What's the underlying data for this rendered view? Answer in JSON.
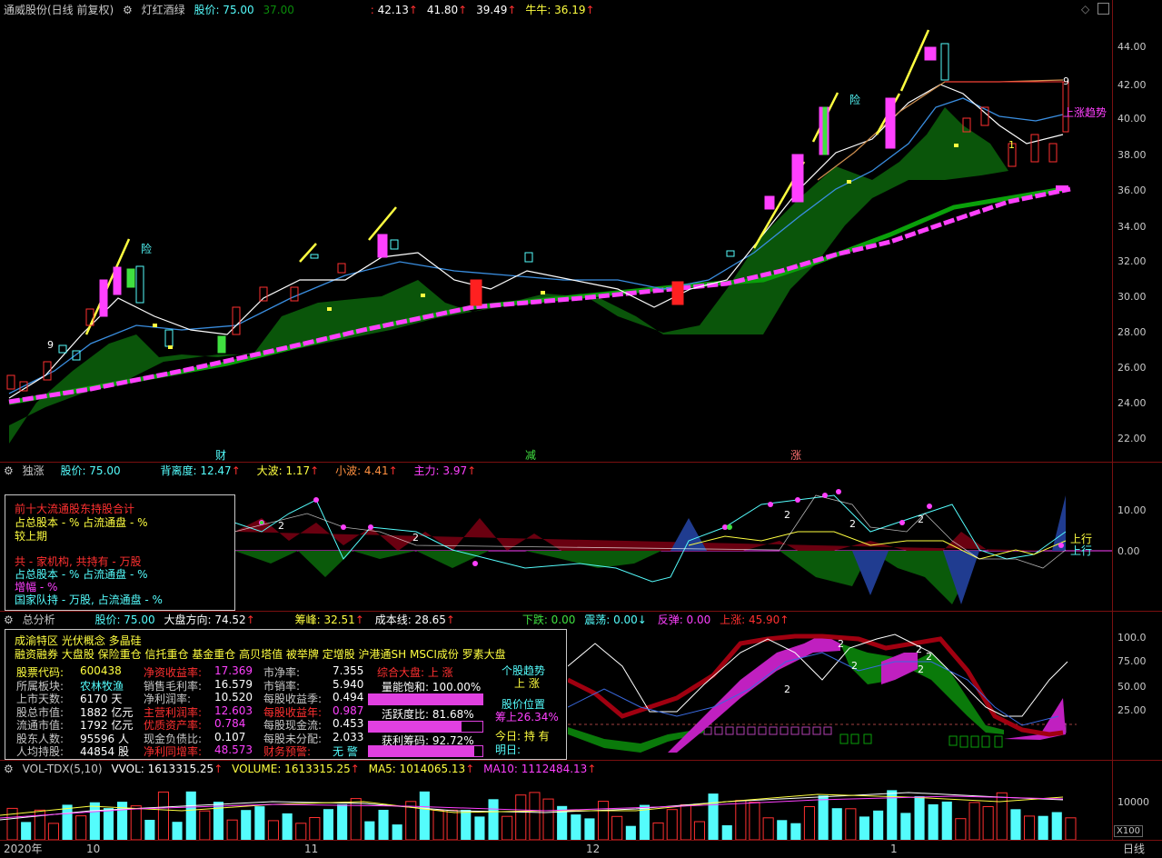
{
  "main": {
    "stock_title": "通威股份(日线 前复权)",
    "indicator": "灯红酒绿",
    "price": "股价: 75.00",
    "val_37": "37.00",
    "v1": "42.13",
    "v2": "41.80",
    "v3": "39.49",
    "bull": "牛牛: 36.19",
    "ticks": [
      "44.00",
      "42.00",
      "40.00",
      "38.00",
      "36.00",
      "34.00",
      "32.00",
      "30.00",
      "28.00",
      "26.00",
      "24.00",
      "22.00"
    ],
    "labels": {
      "risk1": "险",
      "risk2": "险",
      "uptrend": "上涨趋势",
      "cai": "财",
      "jian": "减",
      "zhang": "涨",
      "nine": "9",
      "one": "1"
    }
  },
  "panel2": {
    "name": "独涨",
    "price": "股价: 75.00",
    "beili": "背离度: 12.47",
    "dabo": "大波: 1.17",
    "xiaobo": "小波: 4.41",
    "zhuli": "主力: 3.97",
    "ticks": [
      "10.00",
      "0.00"
    ],
    "shang1": "上行",
    "shang2": "上行",
    "two": "2",
    "holder_box": {
      "title": "前十大流通股东持股合计",
      "l1": "占总股本 - %   占流通盘 - %",
      "l2": "较上期",
      "l3": "共 - 家机构, 共持有 - 万股",
      "l4": "占总股本 - %   占流通盘 - %",
      "l5": "增幅 - %",
      "l6": "国家队持 - 万股, 占流通盘 - %"
    }
  },
  "panel3": {
    "name": "总分析",
    "price": "股价: 75.00",
    "dapan": "大盘方向: 74.52",
    "chouma": "筹峰: 32.51",
    "chengben": "成本线: 28.65",
    "xiadie": "下跌: 0.00",
    "zhendang": "震荡: 0.00",
    "fantan": "反弹: 0.00",
    "shangzhang": "上涨: 45.90",
    "ticks": [
      "100.0",
      "75.00",
      "50.00",
      "25.00"
    ],
    "info": {
      "concept1": "成渝特区 光伏概念 多晶硅",
      "concept2": "融资融券 大盘股 保险重仓 信托重仓 基金重仓 高贝塔值 被举牌 定增股 沪港通SH MSCI成份 罗素大盘",
      "rows": [
        [
          "股票代码:",
          "600438",
          "净资收益率:",
          "17.369",
          "市净率:",
          "7.355"
        ],
        [
          "所属板块:",
          "农林牧渔",
          "销售毛利率:",
          "16.579",
          "市销率:",
          "5.940"
        ],
        [
          "上市天数:",
          "6170 天",
          "净利润率:",
          "10.520",
          "每股收益季:",
          "0.494"
        ],
        [
          "股总市值:",
          "1882 亿元",
          "主营利润率:",
          "12.603",
          "每股收益年:",
          "0.987"
        ],
        [
          "流通市值:",
          "1792 亿元",
          "优质资产率:",
          "0.784",
          "每股现金流:",
          "0.453"
        ],
        [
          "股东人数:",
          "95596 人",
          "现金负债比:",
          "0.107",
          "每股未分配:",
          "2.033"
        ],
        [
          "人均持股:",
          "44854 股",
          "净利同增率:",
          "48.573",
          "财务预警:",
          "无 警"
        ]
      ],
      "zonghe": "综合大盘: 上 涨",
      "liangneng": "量能饱和: 100.00%",
      "huoyue": "活跃度比: 81.68%",
      "huoli": "获利筹码: 92.72%",
      "liangneng_pct": 100.0,
      "huoyue_pct": 81.68,
      "huoli_pct": 92.72,
      "trend_title": "个股趋势",
      "trend_val": "上 涨",
      "pos_title": "股价位置",
      "pos_val": "筹上26.34%",
      "today": "今日: 持 有",
      "tomorrow": "明日:"
    }
  },
  "panel4": {
    "name": "VOL-TDX(5,10)",
    "vvol": "VVOL: 1613315.25",
    "volume": "VOLUME: 1613315.25",
    "ma5": "MA5: 1014065.13",
    "ma10": "MA10: 1112484.13",
    "tick": "10000",
    "x100": "X100"
  },
  "bottom": {
    "year": "2020年",
    "m10": "10",
    "m11": "11",
    "m12": "12",
    "m1": "1",
    "period": "日线"
  },
  "colors": {
    "up": "#ff3030",
    "down": "#54fcfc",
    "magenta": "#ff40ff",
    "green": "#0a6e0a",
    "yellow": "#ffff40",
    "axis": "#7a1010"
  }
}
